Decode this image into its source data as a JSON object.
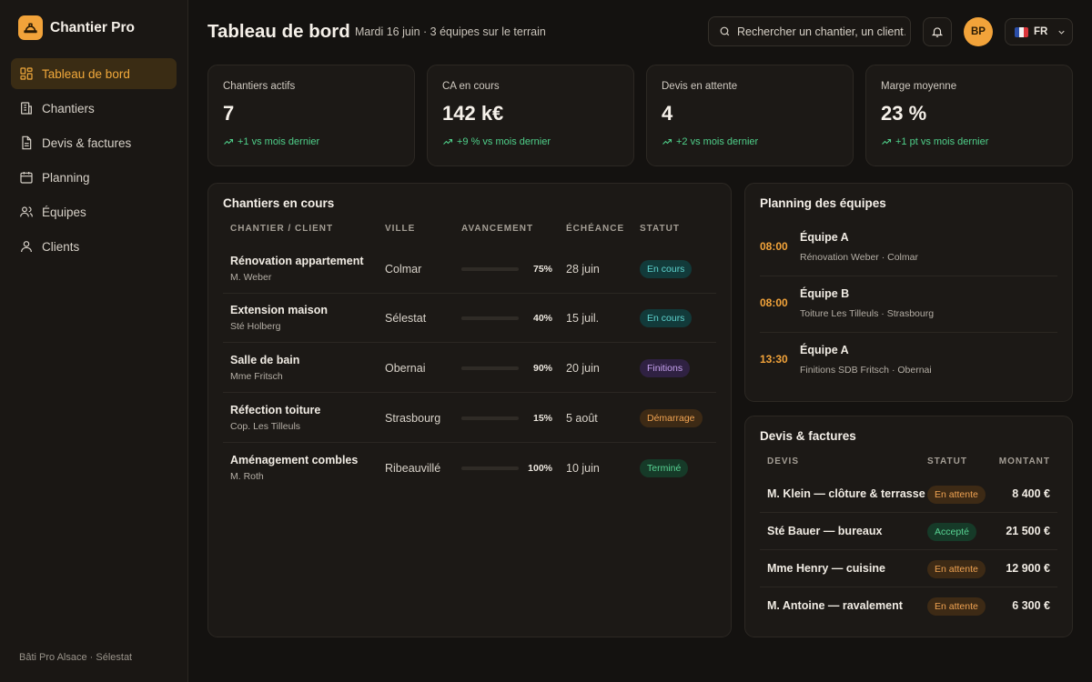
{
  "app": {
    "name": "Chantier Pro",
    "footer": "Bâti Pro Alsace · Sélestat",
    "accent": "#f2a33a"
  },
  "nav": [
    {
      "label": "Tableau de bord",
      "icon": "dashboard-icon",
      "active": true
    },
    {
      "label": "Chantiers",
      "icon": "building-icon"
    },
    {
      "label": "Devis & factures",
      "icon": "document-icon"
    },
    {
      "label": "Planning",
      "icon": "calendar-icon"
    },
    {
      "label": "Équipes",
      "icon": "team-icon"
    },
    {
      "label": "Clients",
      "icon": "user-icon"
    }
  ],
  "header": {
    "title": "Tableau de bord",
    "subtitle": "Mardi 16 juin · 3 équipes sur le terrain",
    "search_placeholder": "Rechercher un chantier, un client…",
    "avatar": "BP",
    "lang": "FR"
  },
  "kpis": [
    {
      "label": "Chantiers actifs",
      "value": "7",
      "trend": "+1 vs mois dernier"
    },
    {
      "label": "CA en cours",
      "value": "142 k€",
      "trend": "+9 % vs mois dernier"
    },
    {
      "label": "Devis en attente",
      "value": "4",
      "trend": "+2 vs mois dernier"
    },
    {
      "label": "Marge moyenne",
      "value": "23 %",
      "trend": "+1 pt vs mois dernier"
    }
  ],
  "chantiers": {
    "title": "Chantiers en cours",
    "columns": [
      "CHANTIER / CLIENT",
      "VILLE",
      "AVANCEMENT",
      "ÉCHÉANCE",
      "STATUT"
    ],
    "rows": [
      {
        "name": "Rénovation appartement",
        "client": "M. Weber",
        "city": "Colmar",
        "progress": 75,
        "progress_label": "75%",
        "due": "28 juin",
        "status": "En cours",
        "status_kind": "cours"
      },
      {
        "name": "Extension maison",
        "client": "Sté Holberg",
        "city": "Sélestat",
        "progress": 40,
        "progress_label": "40%",
        "due": "15 juil.",
        "status": "En cours",
        "status_kind": "cours"
      },
      {
        "name": "Salle de bain",
        "client": "Mme Fritsch",
        "city": "Obernai",
        "progress": 90,
        "progress_label": "90%",
        "due": "20 juin",
        "status": "Finitions",
        "status_kind": "fin"
      },
      {
        "name": "Réfection toiture",
        "client": "Cop. Les Tilleuls",
        "city": "Strasbourg",
        "progress": 15,
        "progress_label": "15%",
        "due": "5 août",
        "status": "Démarrage",
        "status_kind": "dem"
      },
      {
        "name": "Aménagement combles",
        "client": "M. Roth",
        "city": "Ribeauvillé",
        "progress": 100,
        "progress_label": "100%",
        "due": "10 juin",
        "status": "Terminé",
        "status_kind": "term"
      }
    ]
  },
  "planning": {
    "title": "Planning des équipes",
    "items": [
      {
        "time": "08:00",
        "team": "Équipe A",
        "desc": "Rénovation Weber · Colmar"
      },
      {
        "time": "08:00",
        "team": "Équipe B",
        "desc": "Toiture Les Tilleuls · Strasbourg"
      },
      {
        "time": "13:30",
        "team": "Équipe A",
        "desc": "Finitions SDB Fritsch · Obernai"
      }
    ]
  },
  "devis": {
    "title": "Devis & factures",
    "columns": [
      "DEVIS",
      "STATUT",
      "MONTANT"
    ],
    "rows": [
      {
        "name": "M. Klein — clôture & terrasse",
        "status": "En attente",
        "status_kind": "att",
        "amount": "8 400 €"
      },
      {
        "name": "Sté Bauer — bureaux",
        "status": "Accepté",
        "status_kind": "acc",
        "amount": "21 500 €"
      },
      {
        "name": "Mme Henry — cuisine",
        "status": "En attente",
        "status_kind": "att",
        "amount": "12 900 €"
      },
      {
        "name": "M. Antoine — ravalement",
        "status": "En attente",
        "status_kind": "att",
        "amount": "6 300 €"
      }
    ]
  }
}
